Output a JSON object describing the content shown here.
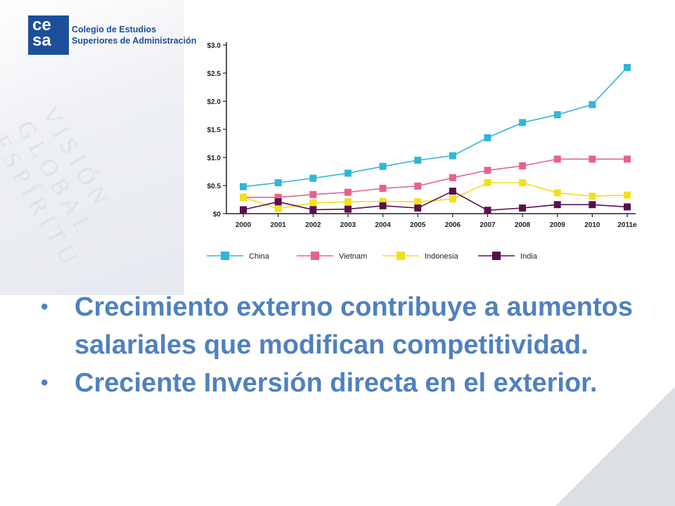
{
  "logo": {
    "mark": "ce sa",
    "line1": "Colegio de Estudios",
    "line2": "Superiores de Administración"
  },
  "chart_data": {
    "type": "line",
    "title": "",
    "xlabel": "",
    "ylabel": "",
    "categories": [
      "2000",
      "2001",
      "2002",
      "2003",
      "2004",
      "2005",
      "2006",
      "2007",
      "2008",
      "2009",
      "2010",
      "2011e"
    ],
    "ylim": [
      0,
      3.0
    ],
    "yticks": [
      "$0",
      "$0.5",
      "$1.0",
      "$1.5",
      "$2.0",
      "$2.5",
      "$3.0"
    ],
    "ytick_values": [
      0,
      0.5,
      1.0,
      1.5,
      2.0,
      2.5,
      3.0
    ],
    "grid": false,
    "legend_position": "bottom",
    "series": [
      {
        "name": "China",
        "color": "#31b6d8",
        "values": [
          0.48,
          0.55,
          0.63,
          0.72,
          0.84,
          0.95,
          1.03,
          1.35,
          1.62,
          1.76,
          1.94,
          2.6
        ]
      },
      {
        "name": "Vietnam",
        "color": "#e5638a",
        "values": [
          0.29,
          0.29,
          0.34,
          0.38,
          0.45,
          0.49,
          0.64,
          0.77,
          0.85,
          0.97,
          0.97,
          0.97
        ]
      },
      {
        "name": "Indonesia",
        "color": "#f3df1c",
        "values": [
          0.29,
          0.09,
          0.19,
          0.21,
          0.22,
          0.21,
          0.26,
          0.55,
          0.55,
          0.37,
          0.31,
          0.33
        ]
      },
      {
        "name": "India",
        "color": "#5a0f4a",
        "values": [
          0.07,
          0.21,
          0.07,
          0.08,
          0.14,
          0.1,
          0.4,
          0.06,
          0.1,
          0.16,
          0.16,
          0.12
        ]
      }
    ]
  },
  "bullets": [
    "Crecimiento externo contribuye a aumentos salariales que modifican competitividad.",
    "Creciente Inversión directa en el exterior."
  ],
  "icons": {
    "bullet": "•"
  }
}
